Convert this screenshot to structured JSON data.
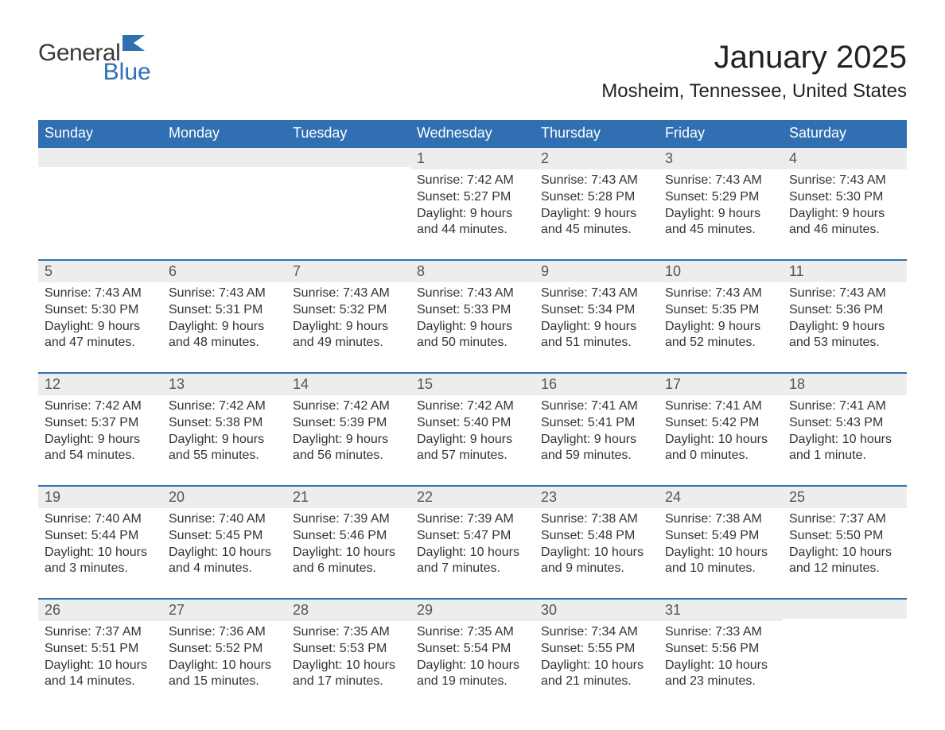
{
  "logo": {
    "part1": "General",
    "part2": "Blue"
  },
  "title": "January 2025",
  "location": "Mosheim, Tennessee, United States",
  "weekday_headers": [
    "Sunday",
    "Monday",
    "Tuesday",
    "Wednesday",
    "Thursday",
    "Friday",
    "Saturday"
  ],
  "colors": {
    "header_bg": "#2f6fb2",
    "header_text": "#ffffff",
    "daynum_bg": "#ededed",
    "border_top": "#2f6fb2",
    "body_text": "#333333",
    "logo_blue": "#2f6fb2",
    "background": "#ffffff"
  },
  "fonts": {
    "title_size_pt": 30,
    "location_size_pt": 18,
    "header_size_pt": 14,
    "daynum_size_pt": 14,
    "body_size_pt": 12
  },
  "labels": {
    "sunrise": "Sunrise:",
    "sunset": "Sunset:",
    "daylight": "Daylight:"
  },
  "weeks": [
    [
      null,
      null,
      null,
      {
        "day": "1",
        "sunrise": "7:42 AM",
        "sunset": "5:27 PM",
        "daylight": "9 hours and 44 minutes."
      },
      {
        "day": "2",
        "sunrise": "7:43 AM",
        "sunset": "5:28 PM",
        "daylight": "9 hours and 45 minutes."
      },
      {
        "day": "3",
        "sunrise": "7:43 AM",
        "sunset": "5:29 PM",
        "daylight": "9 hours and 45 minutes."
      },
      {
        "day": "4",
        "sunrise": "7:43 AM",
        "sunset": "5:30 PM",
        "daylight": "9 hours and 46 minutes."
      }
    ],
    [
      {
        "day": "5",
        "sunrise": "7:43 AM",
        "sunset": "5:30 PM",
        "daylight": "9 hours and 47 minutes."
      },
      {
        "day": "6",
        "sunrise": "7:43 AM",
        "sunset": "5:31 PM",
        "daylight": "9 hours and 48 minutes."
      },
      {
        "day": "7",
        "sunrise": "7:43 AM",
        "sunset": "5:32 PM",
        "daylight": "9 hours and 49 minutes."
      },
      {
        "day": "8",
        "sunrise": "7:43 AM",
        "sunset": "5:33 PM",
        "daylight": "9 hours and 50 minutes."
      },
      {
        "day": "9",
        "sunrise": "7:43 AM",
        "sunset": "5:34 PM",
        "daylight": "9 hours and 51 minutes."
      },
      {
        "day": "10",
        "sunrise": "7:43 AM",
        "sunset": "5:35 PM",
        "daylight": "9 hours and 52 minutes."
      },
      {
        "day": "11",
        "sunrise": "7:43 AM",
        "sunset": "5:36 PM",
        "daylight": "9 hours and 53 minutes."
      }
    ],
    [
      {
        "day": "12",
        "sunrise": "7:42 AM",
        "sunset": "5:37 PM",
        "daylight": "9 hours and 54 minutes."
      },
      {
        "day": "13",
        "sunrise": "7:42 AM",
        "sunset": "5:38 PM",
        "daylight": "9 hours and 55 minutes."
      },
      {
        "day": "14",
        "sunrise": "7:42 AM",
        "sunset": "5:39 PM",
        "daylight": "9 hours and 56 minutes."
      },
      {
        "day": "15",
        "sunrise": "7:42 AM",
        "sunset": "5:40 PM",
        "daylight": "9 hours and 57 minutes."
      },
      {
        "day": "16",
        "sunrise": "7:41 AM",
        "sunset": "5:41 PM",
        "daylight": "9 hours and 59 minutes."
      },
      {
        "day": "17",
        "sunrise": "7:41 AM",
        "sunset": "5:42 PM",
        "daylight": "10 hours and 0 minutes."
      },
      {
        "day": "18",
        "sunrise": "7:41 AM",
        "sunset": "5:43 PM",
        "daylight": "10 hours and 1 minute."
      }
    ],
    [
      {
        "day": "19",
        "sunrise": "7:40 AM",
        "sunset": "5:44 PM",
        "daylight": "10 hours and 3 minutes."
      },
      {
        "day": "20",
        "sunrise": "7:40 AM",
        "sunset": "5:45 PM",
        "daylight": "10 hours and 4 minutes."
      },
      {
        "day": "21",
        "sunrise": "7:39 AM",
        "sunset": "5:46 PM",
        "daylight": "10 hours and 6 minutes."
      },
      {
        "day": "22",
        "sunrise": "7:39 AM",
        "sunset": "5:47 PM",
        "daylight": "10 hours and 7 minutes."
      },
      {
        "day": "23",
        "sunrise": "7:38 AM",
        "sunset": "5:48 PM",
        "daylight": "10 hours and 9 minutes."
      },
      {
        "day": "24",
        "sunrise": "7:38 AM",
        "sunset": "5:49 PM",
        "daylight": "10 hours and 10 minutes."
      },
      {
        "day": "25",
        "sunrise": "7:37 AM",
        "sunset": "5:50 PM",
        "daylight": "10 hours and 12 minutes."
      }
    ],
    [
      {
        "day": "26",
        "sunrise": "7:37 AM",
        "sunset": "5:51 PM",
        "daylight": "10 hours and 14 minutes."
      },
      {
        "day": "27",
        "sunrise": "7:36 AM",
        "sunset": "5:52 PM",
        "daylight": "10 hours and 15 minutes."
      },
      {
        "day": "28",
        "sunrise": "7:35 AM",
        "sunset": "5:53 PM",
        "daylight": "10 hours and 17 minutes."
      },
      {
        "day": "29",
        "sunrise": "7:35 AM",
        "sunset": "5:54 PM",
        "daylight": "10 hours and 19 minutes."
      },
      {
        "day": "30",
        "sunrise": "7:34 AM",
        "sunset": "5:55 PM",
        "daylight": "10 hours and 21 minutes."
      },
      {
        "day": "31",
        "sunrise": "7:33 AM",
        "sunset": "5:56 PM",
        "daylight": "10 hours and 23 minutes."
      },
      null
    ]
  ]
}
